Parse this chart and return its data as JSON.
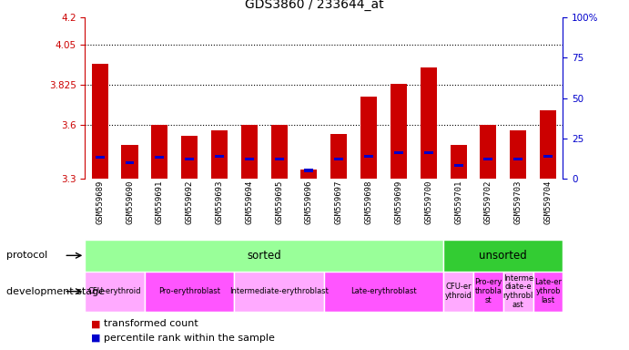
{
  "title": "GDS3860 / 233644_at",
  "samples": [
    "GSM559689",
    "GSM559690",
    "GSM559691",
    "GSM559692",
    "GSM559693",
    "GSM559694",
    "GSM559695",
    "GSM559696",
    "GSM559697",
    "GSM559698",
    "GSM559699",
    "GSM559700",
    "GSM559701",
    "GSM559702",
    "GSM559703",
    "GSM559704"
  ],
  "transformed_count": [
    3.94,
    3.49,
    3.6,
    3.54,
    3.57,
    3.6,
    3.6,
    3.35,
    3.55,
    3.76,
    3.83,
    3.92,
    3.49,
    3.6,
    3.57,
    3.68
  ],
  "percentile_values": [
    13,
    10,
    13,
    12,
    14,
    12,
    12,
    5,
    12,
    14,
    16,
    16,
    8,
    12,
    12,
    14
  ],
  "y_min": 3.3,
  "y_max": 4.2,
  "y_ticks": [
    3.3,
    3.6,
    3.825,
    4.05,
    4.2
  ],
  "y_tick_labels": [
    "3.3",
    "3.6",
    "3.825",
    "4.05",
    "4.2"
  ],
  "y2_ticks": [
    0,
    25,
    50,
    75,
    100
  ],
  "y2_tick_labels": [
    "0",
    "25",
    "50",
    "75",
    "100%"
  ],
  "bar_color": "#cc0000",
  "percentile_color": "#0000cc",
  "bg_color_sorted": "#99ff99",
  "bg_color_unsorted": "#33cc33",
  "protocol_groups": [
    {
      "label": "sorted",
      "start": 0,
      "end": 11
    },
    {
      "label": "unsorted",
      "start": 12,
      "end": 15
    }
  ],
  "stage_groups": [
    {
      "label": "CFU-erythroid",
      "start": 0,
      "end": 1,
      "color": "#ffaaff"
    },
    {
      "label": "Pro-erythroblast",
      "start": 2,
      "end": 4,
      "color": "#ff55ff"
    },
    {
      "label": "Intermediate-erythroblast",
      "start": 5,
      "end": 7,
      "color": "#ffaaff"
    },
    {
      "label": "Late-erythroblast",
      "start": 8,
      "end": 11,
      "color": "#ff55ff"
    },
    {
      "label": "CFU-er\nythroid",
      "start": 12,
      "end": 12,
      "color": "#ffaaff"
    },
    {
      "label": "Pro-ery\nthrobla\nst",
      "start": 13,
      "end": 13,
      "color": "#ff55ff"
    },
    {
      "label": "Interme\ndiate-e\nrythrobl\nast",
      "start": 14,
      "end": 14,
      "color": "#ffaaff"
    },
    {
      "label": "Late-er\nythrob\nlast",
      "start": 15,
      "end": 15,
      "color": "#ff55ff"
    }
  ],
  "grid_levels": [
    3.6,
    3.825,
    4.05
  ],
  "axis_color_left": "#cc0000",
  "axis_color_right": "#0000cc",
  "tick_bg_color": "#cccccc"
}
